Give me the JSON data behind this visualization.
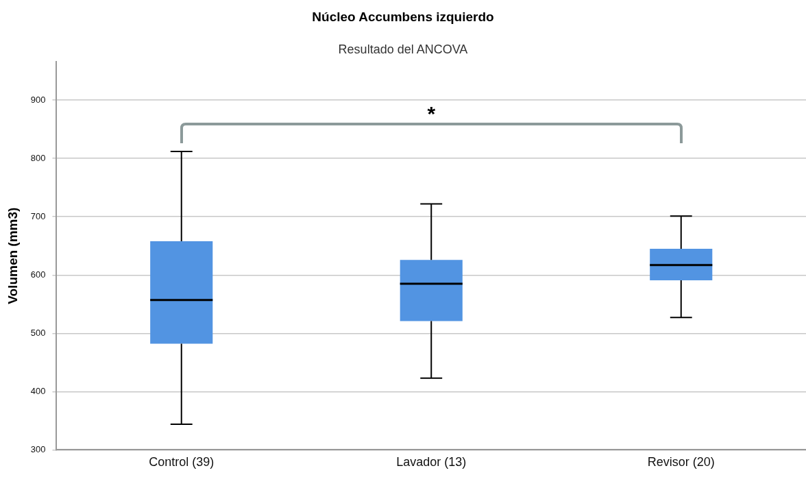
{
  "chart_data": {
    "type": "box",
    "title": "Núcleo Accumbens izquierdo",
    "subtitle": "Resultado del ANCOVA",
    "ylabel": "Volumen (mm3)",
    "categories": [
      "Control (39)",
      "Lavador (13)",
      "Revisor (20)"
    ],
    "boxes": [
      {
        "low": 344,
        "q1": 482,
        "median": 557,
        "q3": 658,
        "high": 812
      },
      {
        "low": 423,
        "q1": 521,
        "median": 585,
        "q3": 626,
        "high": 722
      },
      {
        "low": 527,
        "q1": 591,
        "median": 617,
        "q3": 645,
        "high": 701
      }
    ],
    "color": "#5294e2",
    "ylim": [
      300,
      966
    ],
    "yticks": [
      300,
      400,
      500,
      600,
      700,
      800,
      900
    ],
    "grid": "y",
    "annotations": [
      "*"
    ]
  }
}
